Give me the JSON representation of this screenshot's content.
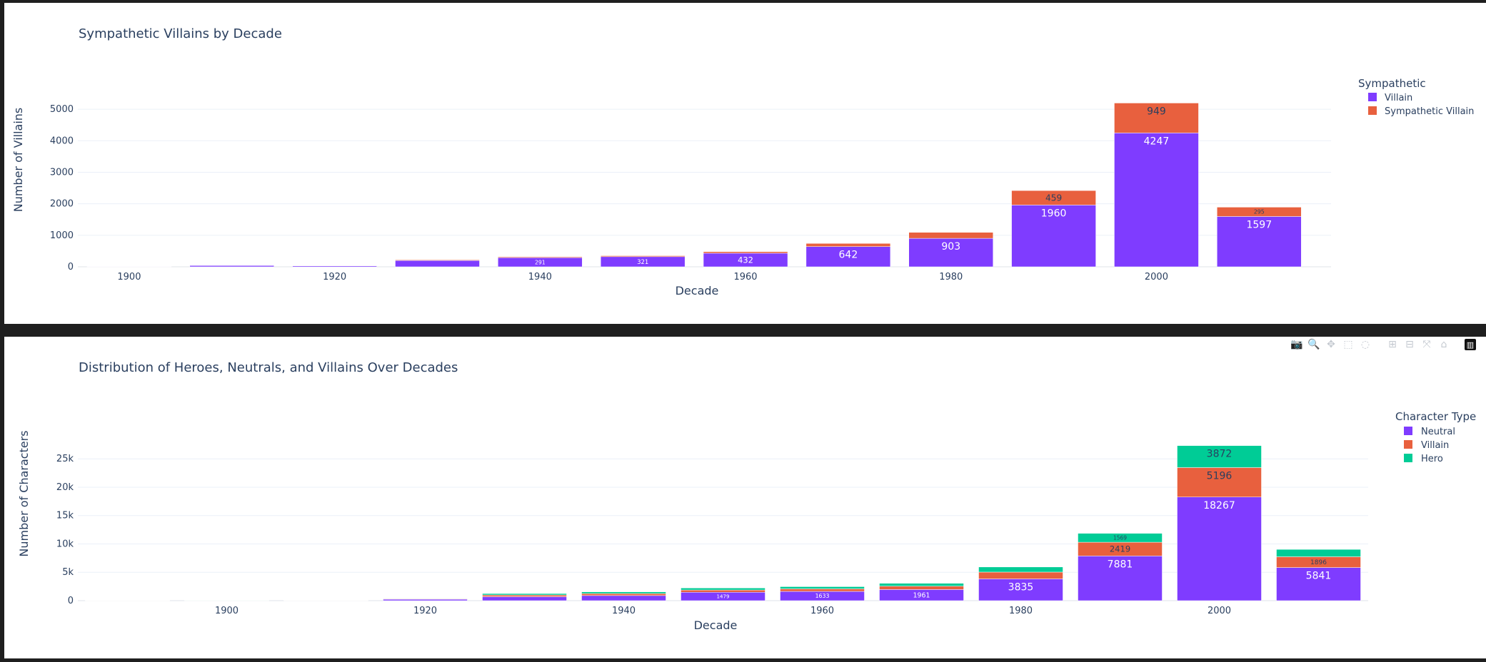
{
  "chart_data": [
    {
      "type": "bar",
      "title": "Sympathetic Villains by Decade",
      "xlabel": "Decade",
      "ylabel": "Number of Villains",
      "legend_title": "Sympathetic",
      "legend_placement": "top-right",
      "grid": true,
      "ylim": [
        0,
        5500
      ],
      "x_range": [
        1895,
        2017
      ],
      "yticks": [
        0,
        1000,
        2000,
        3000,
        4000,
        5000
      ],
      "ytick_labels": [
        "0",
        "1000",
        "2000",
        "3000",
        "4000",
        "5000"
      ],
      "xticks": [
        1900,
        1920,
        1940,
        1960,
        1980,
        2000
      ],
      "xtick_labels": [
        "1900",
        "1920",
        "1940",
        "1960",
        "1980",
        "2000"
      ],
      "categories": [
        1900,
        1910,
        1920,
        1930,
        1940,
        1950,
        1960,
        1970,
        1980,
        1990,
        2000,
        2010
      ],
      "series": [
        {
          "name": "Villain",
          "color": "#7f3cff",
          "values": [
            5,
            40,
            30,
            200,
            291,
            321,
            432,
            642,
            903,
            1960,
            4247,
            1597
          ],
          "labels": [
            "",
            "",
            "",
            "",
            "291",
            "321",
            "432",
            "642",
            "903",
            "1960",
            "4247",
            "1597"
          ]
        },
        {
          "name": "Sympathetic Villain",
          "color": "#e8603e",
          "values": [
            0,
            3,
            3,
            20,
            25,
            30,
            48,
            100,
            190,
            459,
            949,
            295
          ],
          "labels": [
            "",
            "",
            "",
            "",
            "",
            "",
            "",
            "",
            "",
            "459",
            "949",
            "295"
          ]
        }
      ]
    },
    {
      "type": "bar",
      "title": "Distribution of Heroes, Neutrals, and Villains Over Decades",
      "xlabel": "Decade",
      "ylabel": "Number of Characters",
      "legend_title": "Character Type",
      "legend_placement": "top-right",
      "grid": true,
      "ylim": [
        0,
        28800
      ],
      "x_range": [
        1885,
        2015
      ],
      "yticks": [
        0,
        5000,
        10000,
        15000,
        20000,
        25000
      ],
      "ytick_labels": [
        "0",
        "5k",
        "10k",
        "15k",
        "20k",
        "25k"
      ],
      "xticks": [
        1900,
        1920,
        1940,
        1960,
        1980,
        2000
      ],
      "xtick_labels": [
        "1900",
        "1920",
        "1940",
        "1960",
        "1980",
        "2000"
      ],
      "categories": [
        1890,
        1900,
        1910,
        1920,
        1930,
        1940,
        1950,
        1960,
        1970,
        1980,
        1990,
        2000,
        2010
      ],
      "series": [
        {
          "name": "Neutral",
          "color": "#7f3cff",
          "values": [
            20,
            40,
            60,
            250,
            700,
            900,
            1479,
            1633,
            1961,
            3835,
            7881,
            18267,
            5841
          ],
          "labels": [
            "",
            "",
            "",
            "",
            "",
            "",
            "1479",
            "1633",
            "1961",
            "3835",
            "7881",
            "18267",
            "5841"
          ]
        },
        {
          "name": "Villain",
          "color": "#e8603e",
          "values": [
            5,
            10,
            20,
            80,
            300,
            350,
            400,
            450,
            600,
            1200,
            2419,
            5196,
            1896
          ],
          "labels": [
            "",
            "",
            "",
            "",
            "",
            "",
            "",
            "",
            "",
            "",
            "2419",
            "5196",
            "1896"
          ]
        },
        {
          "name": "Hero",
          "color": "#00cc96",
          "values": [
            5,
            10,
            20,
            60,
            250,
            300,
            350,
            380,
            500,
            900,
            1569,
            3872,
            1300
          ],
          "labels": [
            "",
            "",
            "",
            "",
            "",
            "",
            "",
            "",
            "",
            "",
            "1569",
            "3872",
            ""
          ]
        }
      ]
    }
  ],
  "modebar": [
    {
      "name": "camera-icon",
      "glyph": "📷"
    },
    {
      "name": "zoom-icon",
      "glyph": "🔍"
    },
    {
      "name": "pan-icon",
      "glyph": "✥"
    },
    {
      "name": "box-select-icon",
      "glyph": "⬚"
    },
    {
      "name": "lasso-select-icon",
      "glyph": "◌"
    },
    {
      "name": "zoom-in-icon",
      "glyph": "⊞"
    },
    {
      "name": "zoom-out-icon",
      "glyph": "⊟"
    },
    {
      "name": "autoscale-icon",
      "glyph": "⤧"
    },
    {
      "name": "reset-axes-icon",
      "glyph": "⌂"
    },
    {
      "name": "plotly-logo-icon",
      "glyph": "▥"
    }
  ]
}
